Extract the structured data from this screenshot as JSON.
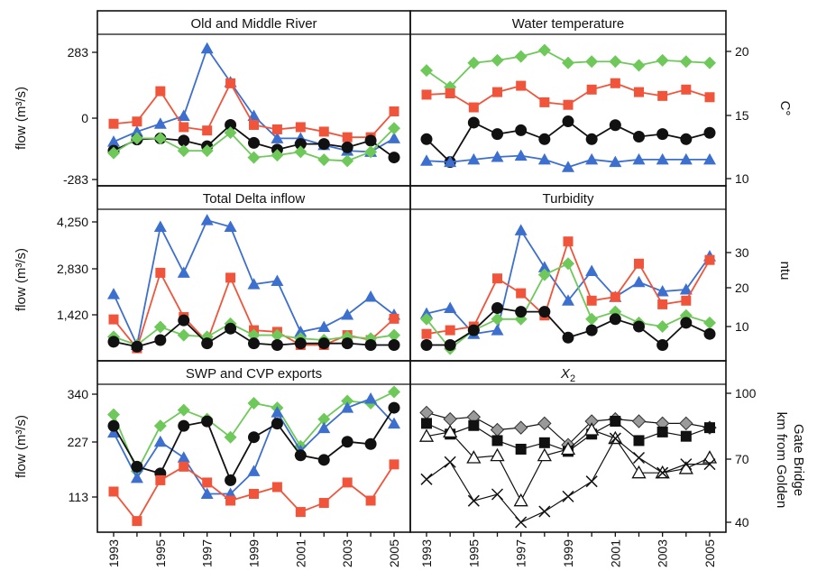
{
  "colors": {
    "blue": "#3d6fcf",
    "red": "#f0553c",
    "green": "#6fc95a",
    "black": "#111111",
    "gray": "#9a9a9a"
  },
  "chart_data": [
    {
      "type": "line",
      "title": "Old and Middle River",
      "ylabel": "flow (m³/s)",
      "ylim": [
        -283,
        283
      ],
      "yticks": [
        "283",
        "0",
        "-283"
      ],
      "x": [
        1993,
        1994,
        1995,
        1996,
        1997,
        1998,
        1999,
        2000,
        2001,
        2002,
        2003,
        2004,
        2005
      ],
      "series": [
        {
          "color": "blue",
          "marker": "triangle",
          "values": [
            -115,
            -70,
            -35,
            0,
            300,
            150,
            0,
            -100,
            -100,
            -130,
            -155,
            -160,
            -100
          ]
        },
        {
          "color": "red",
          "marker": "square",
          "values": [
            -35,
            -25,
            110,
            -50,
            -65,
            145,
            -40,
            -60,
            -50,
            -70,
            -95,
            -95,
            20
          ]
        },
        {
          "color": "black",
          "marker": "circle",
          "values": [
            -155,
            -105,
            -100,
            -110,
            -135,
            -40,
            -120,
            -150,
            -125,
            -125,
            -140,
            -110,
            -185
          ]
        },
        {
          "color": "green",
          "marker": "diamond",
          "values": [
            -165,
            -100,
            -100,
            -155,
            -155,
            -75,
            -185,
            -175,
            -160,
            -195,
            -200,
            -160,
            -55
          ]
        }
      ]
    },
    {
      "type": "line",
      "title": "Water temperature",
      "ylabel": "C°",
      "yaxis_side": "right",
      "ylim": [
        10,
        21
      ],
      "yticks": [
        "20",
        "15",
        "10"
      ],
      "x": [
        1993,
        1994,
        1995,
        1996,
        1997,
        1998,
        1999,
        2000,
        2001,
        2002,
        2003,
        2004,
        2005
      ],
      "series": [
        {
          "color": "green",
          "marker": "diamond",
          "values": [
            18.5,
            17.2,
            19.1,
            19.3,
            19.6,
            20.1,
            19.1,
            19.2,
            19.2,
            18.9,
            19.3,
            19.2,
            19.1
          ]
        },
        {
          "color": "red",
          "marker": "square",
          "values": [
            16.6,
            16.7,
            15.6,
            16.8,
            17.3,
            16,
            15.8,
            17,
            17.5,
            16.8,
            16.5,
            17,
            16.4
          ]
        },
        {
          "color": "black",
          "marker": "circle",
          "values": [
            13.1,
            11.3,
            14.4,
            13.5,
            13.8,
            13.1,
            14.5,
            13.1,
            14.2,
            13.3,
            13.5,
            13.1,
            13.6
          ]
        },
        {
          "color": "blue",
          "marker": "triangle",
          "values": [
            11.4,
            11.3,
            11.5,
            11.7,
            11.8,
            11.5,
            10.9,
            11.5,
            11.3,
            11.5,
            11.5,
            11.5,
            11.5
          ]
        }
      ]
    },
    {
      "type": "line",
      "title": "Total Delta inflow",
      "ylabel": "flow (m³/s)",
      "ylim": [
        300,
        4600
      ],
      "yticks": [
        "4,250",
        "2,830",
        "1,420"
      ],
      "x": [
        1993,
        1994,
        1995,
        1996,
        1997,
        1998,
        1999,
        2000,
        2001,
        2002,
        2003,
        2004,
        2005
      ],
      "series": [
        {
          "color": "blue",
          "marker": "triangle",
          "values": [
            2050,
            500,
            4100,
            2700,
            4300,
            4100,
            2350,
            2450,
            900,
            1050,
            1420,
            1970,
            1420
          ]
        },
        {
          "color": "red",
          "marker": "square",
          "values": [
            1280,
            400,
            2700,
            1350,
            600,
            2550,
            950,
            900,
            500,
            500,
            800,
            650,
            1300
          ]
        },
        {
          "color": "green",
          "marker": "diamond",
          "values": [
            750,
            500,
            1050,
            800,
            750,
            1150,
            800,
            800,
            700,
            650,
            750,
            700,
            800
          ]
        },
        {
          "color": "black",
          "marker": "circle",
          "values": [
            600,
            450,
            650,
            1250,
            550,
            1000,
            550,
            500,
            550,
            550,
            550,
            500,
            500
          ]
        }
      ]
    },
    {
      "type": "line",
      "title": "Turbidity",
      "ylabel": "ntu",
      "yaxis_side": "right",
      "ylim": [
        0,
        40
      ],
      "yticks": [
        "30",
        "20",
        "10"
      ],
      "x": [
        1993,
        1994,
        1995,
        1996,
        1997,
        1998,
        1999,
        2000,
        2001,
        2002,
        2003,
        2004,
        2005
      ],
      "series": [
        {
          "color": "blue",
          "marker": "triangle",
          "values": [
            13.5,
            15,
            8,
            9,
            36,
            26,
            17,
            25,
            18,
            22,
            19.5,
            20,
            29
          ]
        },
        {
          "color": "red",
          "marker": "square",
          "values": [
            8,
            9,
            10,
            23,
            19,
            13,
            33,
            17,
            18,
            27,
            16,
            17,
            28
          ]
        },
        {
          "color": "green",
          "marker": "diamond",
          "values": [
            12,
            4,
            9,
            12,
            12,
            24,
            27,
            12,
            14,
            11,
            10,
            13,
            11
          ]
        },
        {
          "color": "black",
          "marker": "circle",
          "values": [
            5,
            5,
            9,
            15,
            14,
            14,
            7,
            9,
            12,
            10,
            5,
            11,
            8
          ]
        }
      ]
    },
    {
      "type": "line",
      "title": "SWP and CVP exports",
      "ylabel": "flow (m³/s)",
      "ylim": [
        50,
        355
      ],
      "yticks": [
        "340",
        "227",
        "113"
      ],
      "x": [
        1993,
        1994,
        1995,
        1996,
        1997,
        1998,
        1999,
        2000,
        2001,
        2002,
        2003,
        2004,
        2005
      ],
      "series": [
        {
          "color": "green",
          "marker": "diamond",
          "values": [
            295,
            170,
            270,
            305,
            285,
            245,
            320,
            310,
            225,
            285,
            325,
            320,
            345
          ]
        },
        {
          "color": "blue",
          "marker": "triangle",
          "values": [
            255,
            155,
            235,
            200,
            120,
            120,
            170,
            300,
            215,
            265,
            310,
            330,
            275
          ]
        },
        {
          "color": "black",
          "marker": "circle",
          "values": [
            270,
            180,
            165,
            270,
            280,
            150,
            245,
            275,
            205,
            195,
            235,
            230,
            310
          ]
        },
        {
          "color": "red",
          "marker": "square",
          "values": [
            125,
            60,
            150,
            180,
            145,
            105,
            120,
            135,
            80,
            100,
            145,
            105,
            185
          ]
        }
      ]
    },
    {
      "type": "line",
      "title": "X",
      "title_subscript": "2",
      "ylabel_lines": [
        "km from Golden",
        "Gate Bridge"
      ],
      "yaxis_side": "right",
      "ylim": [
        37,
        103
      ],
      "yticks": [
        "100",
        "70",
        "40"
      ],
      "x": [
        1993,
        1994,
        1995,
        1996,
        1997,
        1998,
        1999,
        2000,
        2001,
        2002,
        2003,
        2004,
        2005
      ],
      "series": [
        {
          "color": "gray",
          "marker": "diamond",
          "values": [
            91,
            88,
            89,
            83,
            84,
            86,
            76,
            87,
            88,
            87,
            86,
            86,
            84
          ]
        },
        {
          "color": "black",
          "marker": "square",
          "values": [
            86,
            81,
            85,
            78,
            74,
            77,
            73,
            81,
            87,
            78,
            82,
            80,
            84
          ]
        },
        {
          "color": "black",
          "marker": "open-triangle",
          "values": [
            80,
            82,
            70,
            71,
            50,
            71,
            74,
            83,
            79,
            63,
            63,
            65,
            70
          ]
        },
        {
          "color": "black",
          "marker": "cross",
          "values": [
            60,
            68,
            50,
            53,
            40,
            45,
            52,
            59,
            79,
            70,
            63,
            67,
            67
          ]
        }
      ]
    }
  ],
  "x_tick_labels": [
    "1993",
    "1995",
    "1997",
    "1999",
    "2001",
    "2003",
    "2005"
  ]
}
